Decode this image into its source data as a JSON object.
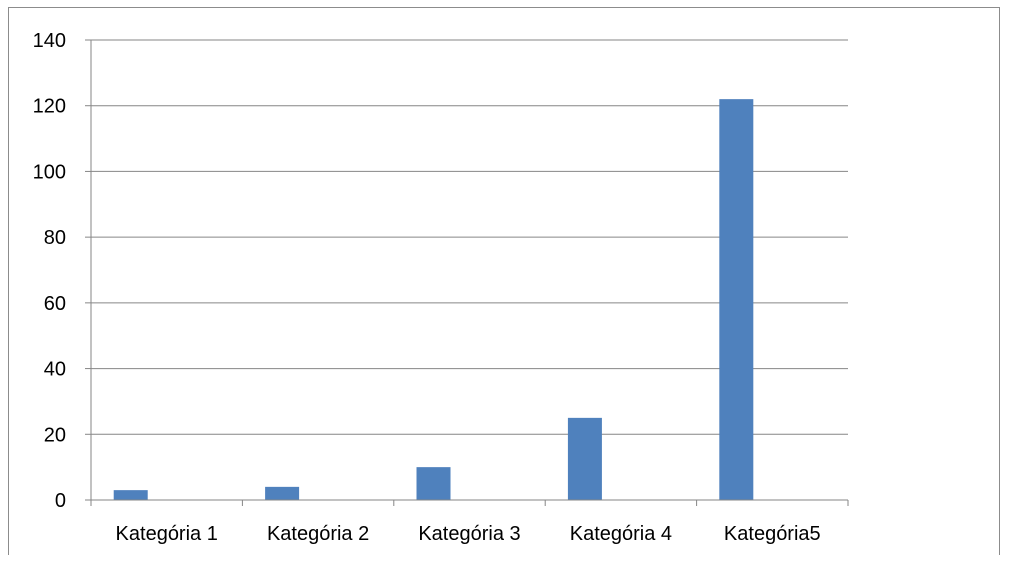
{
  "chart_data": {
    "type": "bar",
    "categories": [
      "Kategória 1",
      "Kategória 2",
      "Kategória 3",
      "Kategória 4",
      "Kategória5"
    ],
    "series": [
      {
        "values": [
          3,
          4,
          10,
          25,
          122
        ],
        "color": "#4f81bd"
      }
    ],
    "ylim": [
      0,
      140
    ],
    "yticks": [
      0,
      20,
      40,
      60,
      80,
      100,
      120,
      140
    ],
    "grid": true,
    "legend": "none",
    "colors": {
      "bar": "#4f81bd",
      "gridline": "#868686",
      "axis": "#868686",
      "frame": "#8c8c8c"
    }
  }
}
